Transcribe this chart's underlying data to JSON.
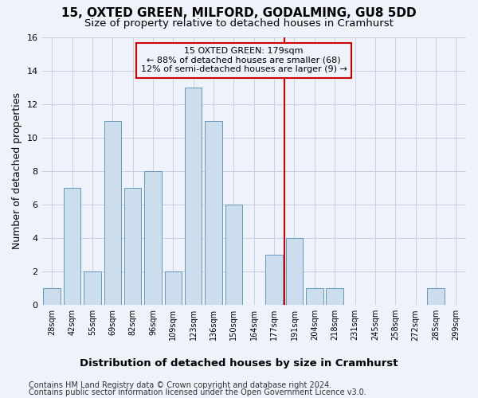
{
  "title": "15, OXTED GREEN, MILFORD, GODALMING, GU8 5DD",
  "subtitle": "Size of property relative to detached houses in Cramhurst",
  "xlabel_bottom": "Distribution of detached houses by size in Cramhurst",
  "ylabel": "Number of detached properties",
  "bar_labels": [
    "28sqm",
    "42sqm",
    "55sqm",
    "69sqm",
    "82sqm",
    "96sqm",
    "109sqm",
    "123sqm",
    "136sqm",
    "150sqm",
    "164sqm",
    "177sqm",
    "191sqm",
    "204sqm",
    "218sqm",
    "231sqm",
    "245sqm",
    "258sqm",
    "272sqm",
    "285sqm",
    "299sqm"
  ],
  "bar_values": [
    1,
    7,
    2,
    11,
    7,
    8,
    2,
    13,
    11,
    6,
    0,
    3,
    4,
    1,
    1,
    0,
    0,
    0,
    0,
    1,
    0
  ],
  "bar_color": "#ccdded",
  "bar_edge_color": "#6699bb",
  "highlight_index": 11,
  "highlight_color": "#cc0000",
  "annotation_text": "15 OXTED GREEN: 179sqm\n← 88% of detached houses are smaller (68)\n12% of semi-detached houses are larger (9) →",
  "ylim": [
    0,
    16
  ],
  "yticks": [
    0,
    2,
    4,
    6,
    8,
    10,
    12,
    14,
    16
  ],
  "footer_line1": "Contains HM Land Registry data © Crown copyright and database right 2024.",
  "footer_line2": "Contains public sector information licensed under the Open Government Licence v3.0.",
  "background_color": "#eef2fa",
  "grid_color": "#c8cfe0",
  "title_fontsize": 11,
  "subtitle_fontsize": 9.5,
  "tick_fontsize": 7,
  "ylabel_fontsize": 9,
  "annotation_fontsize": 8,
  "footer_fontsize": 7,
  "xlabel_bottom_fontsize": 9.5
}
